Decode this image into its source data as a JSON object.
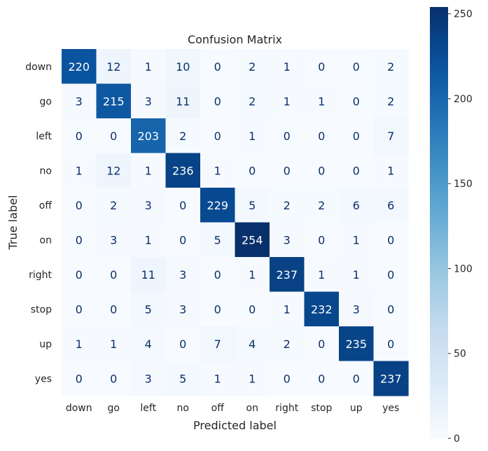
{
  "chart_data": {
    "type": "heatmap",
    "title": "Confusion Matrix",
    "xlabel": "Predicted label",
    "ylabel": "True label",
    "x_categories": [
      "down",
      "go",
      "left",
      "no",
      "off",
      "on",
      "right",
      "stop",
      "up",
      "yes"
    ],
    "y_categories": [
      "down",
      "go",
      "left",
      "no",
      "off",
      "on",
      "right",
      "stop",
      "up",
      "yes"
    ],
    "values": [
      [
        220,
        12,
        1,
        10,
        0,
        2,
        1,
        0,
        0,
        2
      ],
      [
        3,
        215,
        3,
        11,
        0,
        2,
        1,
        1,
        0,
        2
      ],
      [
        0,
        0,
        203,
        2,
        0,
        1,
        0,
        0,
        0,
        7
      ],
      [
        1,
        12,
        1,
        236,
        1,
        0,
        0,
        0,
        0,
        1
      ],
      [
        0,
        2,
        3,
        0,
        229,
        5,
        2,
        2,
        6,
        6
      ],
      [
        0,
        3,
        1,
        0,
        5,
        254,
        3,
        0,
        1,
        0
      ],
      [
        0,
        0,
        11,
        3,
        0,
        1,
        237,
        1,
        1,
        0
      ],
      [
        0,
        0,
        5,
        3,
        0,
        0,
        1,
        232,
        3,
        0
      ],
      [
        1,
        1,
        4,
        0,
        7,
        4,
        2,
        0,
        235,
        0
      ],
      [
        0,
        0,
        3,
        5,
        1,
        1,
        0,
        0,
        0,
        237
      ]
    ],
    "colorbar": {
      "min": 0,
      "max": 254,
      "ticks": [
        "0",
        "50",
        "100",
        "150",
        "200",
        "250"
      ],
      "colormap": "Blues"
    },
    "text_color_light": "#ffffff",
    "text_color_dark": "#08306b",
    "label_color": "#262626",
    "grid": false
  }
}
